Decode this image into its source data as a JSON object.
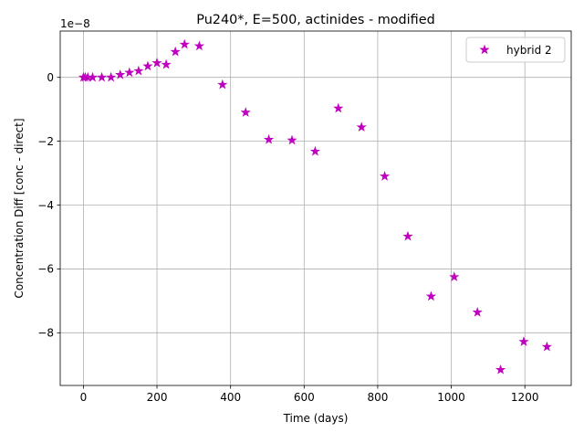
{
  "colors": {
    "marker": "#bf00bf",
    "grid": "#b0b0b0",
    "axis": "#000000",
    "legend_border": "#cccccc"
  },
  "chart_data": {
    "type": "scatter",
    "title": "Pu240*, E=500, actinides - modified",
    "xlabel": "Time (days)",
    "ylabel": "Concentration Diff [conc - direct]",
    "y_offset_label": "1e−8",
    "y_scale_exponent": -8,
    "xlim": [
      -63,
      1326
    ],
    "ylim": [
      -9.65,
      1.45
    ],
    "x_ticks": [
      0,
      200,
      400,
      600,
      800,
      1000,
      1200
    ],
    "x_tick_labels": [
      "0",
      "200",
      "400",
      "600",
      "800",
      "1000",
      "1200"
    ],
    "y_ticks": [
      0,
      -2,
      -4,
      -6,
      -8
    ],
    "y_tick_labels": [
      "0",
      "−2",
      "−4",
      "−6",
      "−8"
    ],
    "grid": true,
    "legend": {
      "placement": "top-right",
      "entries": [
        "hybrid 2"
      ]
    },
    "marker": "star",
    "series": [
      {
        "name": "hybrid 2",
        "x": [
          0,
          5,
          12,
          25,
          50,
          75,
          100,
          125,
          150,
          175,
          200,
          225,
          250,
          275,
          315,
          378,
          441,
          504,
          567,
          630,
          693,
          756,
          819,
          882,
          945,
          1008,
          1071,
          1134,
          1197,
          1260
        ],
        "y": [
          0.0,
          0.0,
          0.0,
          0.0,
          0.0,
          0.0,
          0.08,
          0.15,
          0.2,
          0.35,
          0.45,
          0.4,
          0.8,
          1.03,
          0.98,
          -0.23,
          -1.1,
          -1.95,
          -1.97,
          -2.32,
          -0.97,
          -1.56,
          -3.1,
          -4.98,
          -6.86,
          -6.25,
          -7.36,
          -9.16,
          -8.28,
          -8.44
        ]
      }
    ]
  }
}
